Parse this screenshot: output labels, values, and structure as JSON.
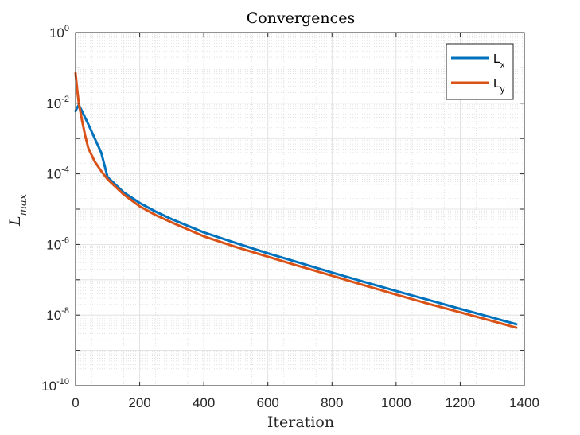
{
  "chart_data": {
    "type": "line",
    "title": "Convergences",
    "xlabel": "Iteration",
    "ylabel_main": "L",
    "ylabel_sub": "max",
    "xlim": [
      0,
      1400
    ],
    "ylim_exponents": [
      -10,
      0
    ],
    "yscale": "log",
    "grid": true,
    "minor_grid": true,
    "legend_position": "top-right",
    "x_ticks": [
      "0",
      "200",
      "400",
      "600",
      "800",
      "1000",
      "1200",
      "1400"
    ],
    "y_tick_base": "10",
    "y_tick_exponents": [
      "-10",
      "-8",
      "-6",
      "-4",
      "-2",
      "0"
    ],
    "series": [
      {
        "name_main": "L",
        "name_sub": "x",
        "color": "#0072BD",
        "points": [
          [
            0,
            0.006
          ],
          [
            5,
            0.0075
          ],
          [
            10,
            0.009
          ],
          [
            20,
            0.006
          ],
          [
            40,
            0.0025
          ],
          [
            60,
            0.001
          ],
          [
            80,
            0.0004
          ],
          [
            100,
            8e-05
          ],
          [
            150,
            3e-05
          ],
          [
            200,
            1.5e-05
          ],
          [
            250,
            8.5e-06
          ],
          [
            300,
            5.2e-06
          ],
          [
            400,
            2.2e-06
          ],
          [
            500,
            1.1e-06
          ],
          [
            600,
            5.6e-07
          ],
          [
            700,
            3e-07
          ],
          [
            800,
            1.6e-07
          ],
          [
            900,
            8.7e-08
          ],
          [
            1000,
            4.8e-08
          ],
          [
            1100,
            2.7e-08
          ],
          [
            1200,
            1.5e-08
          ],
          [
            1300,
            8.5e-09
          ],
          [
            1375,
            5.5e-09
          ]
        ]
      },
      {
        "name_main": "L",
        "name_sub": "y",
        "color": "#D95319",
        "points": [
          [
            0,
            0.07
          ],
          [
            5,
            0.025
          ],
          [
            10,
            0.01
          ],
          [
            20,
            0.0033
          ],
          [
            30,
            0.0012
          ],
          [
            40,
            0.00053
          ],
          [
            60,
            0.00022
          ],
          [
            80,
            0.00012
          ],
          [
            100,
            7e-05
          ],
          [
            150,
            2.6e-05
          ],
          [
            200,
            1.2e-05
          ],
          [
            250,
            6.8e-06
          ],
          [
            300,
            4.2e-06
          ],
          [
            400,
            1.7e-06
          ],
          [
            500,
            8.5e-07
          ],
          [
            600,
            4.5e-07
          ],
          [
            700,
            2.4e-07
          ],
          [
            800,
            1.3e-07
          ],
          [
            900,
            7e-08
          ],
          [
            1000,
            3.8e-08
          ],
          [
            1100,
            2.1e-08
          ],
          [
            1200,
            1.2e-08
          ],
          [
            1300,
            6.8e-09
          ],
          [
            1375,
            4.4e-09
          ]
        ]
      }
    ]
  }
}
